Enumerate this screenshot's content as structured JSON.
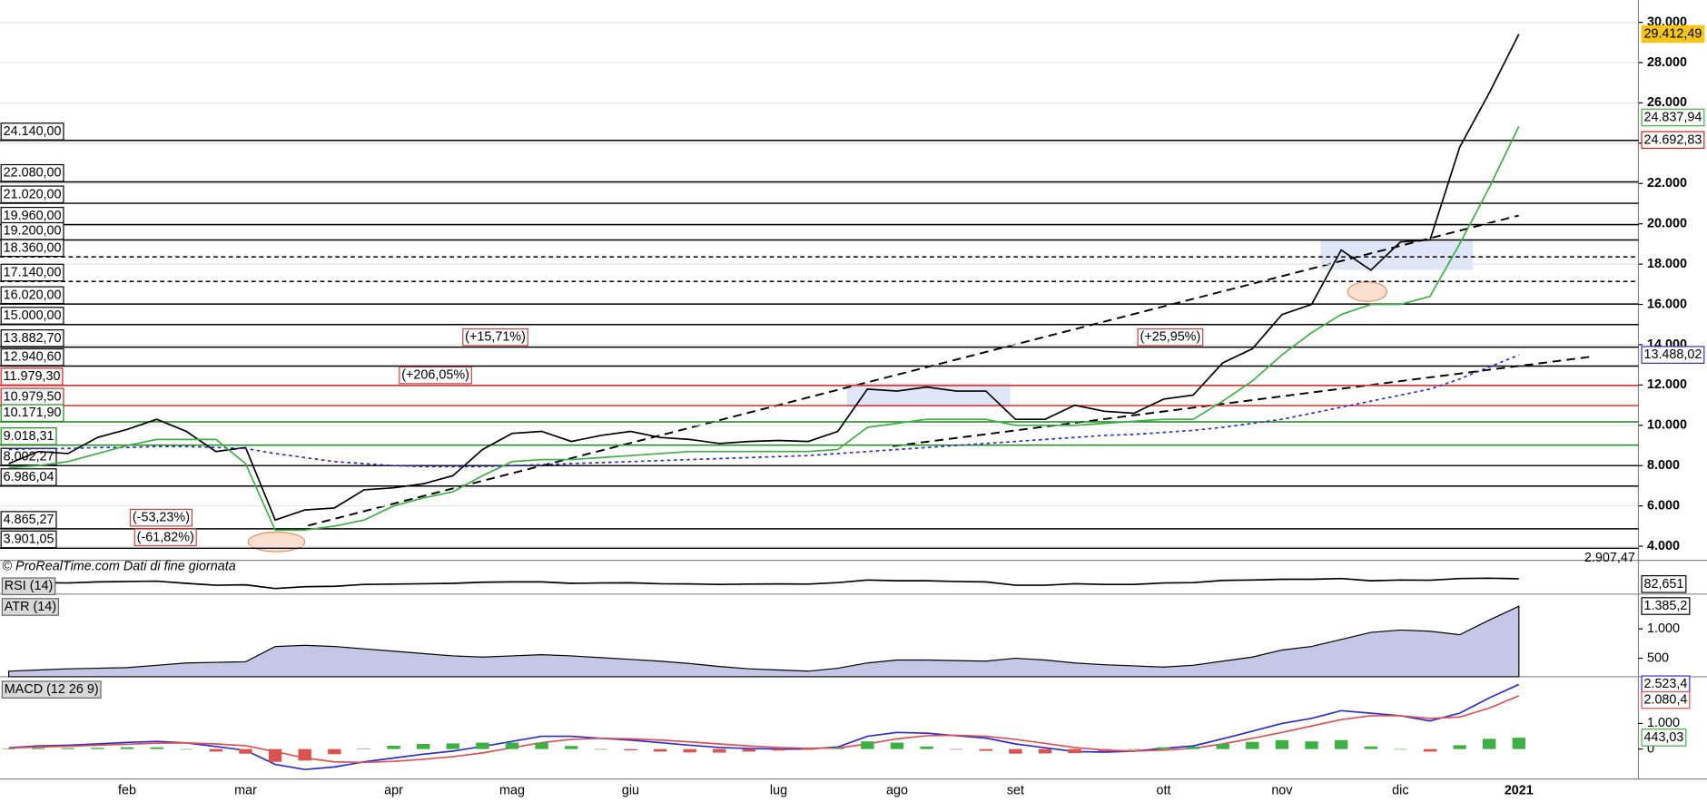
{
  "chart_data": [
    {
      "type": "line",
      "categories": [
        null,
        null,
        null,
        null,
        "feb",
        null,
        null,
        null,
        "mar",
        null,
        null,
        null,
        null,
        "apr",
        null,
        null,
        null,
        "mag",
        null,
        null,
        null,
        "giu",
        null,
        null,
        null,
        null,
        "lug",
        null,
        null,
        null,
        "ago",
        null,
        null,
        null,
        "set",
        null,
        null,
        null,
        null,
        "ott",
        null,
        null,
        null,
        "nov",
        null,
        null,
        null,
        "dic",
        null,
        null,
        null,
        "2021"
      ],
      "series": [
        {
          "color": "#000000",
          "values": [
            8100,
            8700,
            8600,
            9400,
            9800,
            10300,
            9700,
            8700,
            8900,
            5300,
            5800,
            5900,
            6800,
            6900,
            7100,
            7500,
            8800,
            9600,
            9700,
            9200,
            9500,
            9700,
            9400,
            9300,
            9100,
            9200,
            9250,
            9200,
            9700,
            11800,
            11700,
            11900,
            11700,
            11700,
            10300,
            10300,
            11000,
            10700,
            10600,
            11300,
            11500,
            13100,
            13800,
            15500,
            16000,
            18700,
            17700,
            19100,
            19200,
            23800,
            26500,
            29412.49
          ]
        },
        {
          "color": "#2b2bd6",
          "dash": "3,3",
          "values": [
            8800,
            8850,
            8850,
            8900,
            8900,
            8950,
            8950,
            8900,
            8850,
            8600,
            8400,
            8200,
            8100,
            8000,
            7950,
            7950,
            7950,
            8000,
            8050,
            8100,
            8150,
            8200,
            8250,
            8300,
            8350,
            8400,
            8450,
            8500,
            8600,
            8700,
            8800,
            8900,
            9000,
            9100,
            9200,
            9300,
            9400,
            9500,
            9550,
            9650,
            9750,
            9900,
            10100,
            10300,
            10600,
            10900,
            11200,
            11500,
            11800,
            12300,
            12900,
            13488.02
          ]
        },
        {
          "color": "#3cb043",
          "values": [
            7900,
            8000,
            8200,
            8600,
            9000,
            9300,
            9300,
            9300,
            8100,
            4800,
            4800,
            5000,
            5300,
            6000,
            6400,
            6700,
            7500,
            8200,
            8300,
            8300,
            8400,
            8500,
            8600,
            8700,
            8700,
            8700,
            8700,
            8700,
            8800,
            9900,
            10100,
            10300,
            10300,
            10300,
            10000,
            10000,
            10000,
            10100,
            10200,
            10300,
            10300,
            11200,
            12200,
            13500,
            14600,
            15500,
            16000,
            16000,
            16400,
            19000,
            21800,
            24837.94
          ]
        }
      ],
      "ylim": [
        3300,
        31100
      ],
      "yticks": [
        {
          "value": 4000,
          "label": "4.000"
        },
        {
          "value": 6000,
          "label": "6.000"
        },
        {
          "value": 8000,
          "label": "8.000"
        },
        {
          "value": 10000,
          "label": "10.000"
        },
        {
          "value": 12000,
          "label": "12.000"
        },
        {
          "value": 14000,
          "label": "14.000"
        },
        {
          "value": 16000,
          "label": "16.000"
        },
        {
          "value": 18000,
          "label": "18.000"
        },
        {
          "value": 20000,
          "label": "20.000"
        },
        {
          "value": 22000,
          "label": "22.000"
        },
        {
          "value": 24000,
          "label": "24.000"
        },
        {
          "value": 26000,
          "label": "26.000"
        },
        {
          "value": 28000,
          "label": "28.000"
        },
        {
          "value": 30000,
          "label": "30.000"
        }
      ],
      "grid": true,
      "levels": [
        {
          "value": 24140,
          "label": "24.140,00",
          "color": "#000000"
        },
        {
          "value": 22080,
          "label": "22.080,00",
          "color": "#000000"
        },
        {
          "value": 21020,
          "label": "21.020,00",
          "color": "#000000"
        },
        {
          "value": 19960,
          "label": "19.960,00",
          "color": "#000000"
        },
        {
          "value": 19200,
          "label": "19.200,00",
          "color": "#000000"
        },
        {
          "value": 18360,
          "label": "18.360,00",
          "color": "#000000",
          "dash": "4,3"
        },
        {
          "value": 17140,
          "label": "17.140,00",
          "color": "#000000",
          "dash": "4,3"
        },
        {
          "value": 16020,
          "label": "16.020,00",
          "color": "#000000"
        },
        {
          "value": 15000,
          "label": "15.000,00",
          "color": "#000000"
        },
        {
          "value": 13882.7,
          "label": "13.882,70",
          "color": "#000000"
        },
        {
          "value": 12940.6,
          "label": "12.940,60",
          "color": "#000000"
        },
        {
          "value": 11979.3,
          "label": "11.979,30",
          "color": "#d42020"
        },
        {
          "value": 10979.5,
          "label": "10.979,50",
          "color": "#d42020"
        },
        {
          "value": 10171.9,
          "label": "10.171,90",
          "color": "#1a8a1a"
        },
        {
          "value": 9018.31,
          "label": "9.018,31",
          "color": "#1a8a1a"
        },
        {
          "value": 8002.27,
          "label": "8.002,27",
          "color": "#000000"
        },
        {
          "value": 6986.04,
          "label": "6.986,04",
          "color": "#000000"
        },
        {
          "value": 4865.27,
          "label": "4.865,27",
          "color": "#000000"
        },
        {
          "value": 3901.05,
          "label": "3.901,05",
          "color": "#000000"
        }
      ],
      "price_labels": [
        {
          "value": 29412.49,
          "label": "29.412,49",
          "color": "#f5c518"
        },
        {
          "value": 24837.94,
          "label": "24.837,94",
          "color": "#3cb043"
        },
        {
          "value": 24692.83,
          "label": "24.692,83",
          "color": "#d42020"
        },
        {
          "value": 13488.02,
          "label": "13.488,02",
          "color": "#2b2bd6"
        }
      ],
      "annotations": [
        "(+15,71%)",
        "(+206,05%)",
        "(+25,95%)",
        "(-53,23%)",
        "(-61,82%)"
      ],
      "source": "© ProRealTime.com  Dati di fine giornata",
      "bottom_label": "2.907,47"
    },
    {
      "type": "line",
      "title": "RSI (14)",
      "ylim": [
        0,
        100
      ],
      "value_label": "82,651",
      "series": [
        {
          "color": "#000000",
          "values": [
            55,
            62,
            60,
            66,
            68,
            70,
            58,
            48,
            50,
            30,
            40,
            42,
            52,
            54,
            56,
            58,
            64,
            66,
            66,
            58,
            60,
            61,
            56,
            55,
            52,
            54,
            55,
            54,
            62,
            76,
            72,
            72,
            68,
            66,
            48,
            48,
            56,
            52,
            52,
            60,
            62,
            74,
            76,
            80,
            80,
            84,
            72,
            76,
            75,
            84,
            86,
            82.651
          ]
        }
      ]
    },
    {
      "type": "area",
      "title": "ATR (14)",
      "ylim": [
        185,
        1555
      ],
      "yticks": [
        500,
        {
          "value": 1000,
          "label": "1.000"
        }
      ],
      "value_label": "1.385,2",
      "series": [
        {
          "color": "#8080c8",
          "values": [
            280,
            300,
            320,
            330,
            340,
            380,
            420,
            430,
            440,
            700,
            720,
            700,
            660,
            620,
            580,
            540,
            520,
            540,
            560,
            540,
            510,
            480,
            450,
            410,
            360,
            320,
            300,
            280,
            330,
            420,
            470,
            470,
            460,
            450,
            500,
            470,
            420,
            390,
            370,
            350,
            380,
            450,
            520,
            640,
            700,
            820,
            940,
            980,
            960,
            900,
            1150,
            1385.2
          ]
        }
      ]
    },
    {
      "type": "line",
      "title": "MACD (12 26 9)",
      "ylim": [
        -1170,
        2740
      ],
      "yticks": [
        0,
        {
          "value": 1000,
          "label": "1.000"
        }
      ],
      "value_labels": [
        "2.523,4",
        "2.080,4",
        "443,03"
      ],
      "series": [
        {
          "color": "#2b2bd6",
          "values": [
            50,
            120,
            150,
            200,
            260,
            300,
            240,
            100,
            -50,
            -600,
            -800,
            -700,
            -500,
            -350,
            -200,
            -80,
            100,
            300,
            500,
            500,
            420,
            350,
            250,
            150,
            60,
            20,
            0,
            0,
            80,
            500,
            650,
            620,
            520,
            430,
            200,
            50,
            -100,
            -120,
            -80,
            30,
            120,
            400,
            700,
            1000,
            1200,
            1500,
            1400,
            1300,
            1100,
            1400,
            2000,
            2523.4
          ]
        },
        {
          "color": "#e05050",
          "values": [
            40,
            80,
            110,
            150,
            190,
            230,
            240,
            200,
            130,
            -100,
            -350,
            -500,
            -520,
            -480,
            -400,
            -300,
            -150,
            50,
            250,
            380,
            420,
            400,
            350,
            280,
            200,
            120,
            60,
            30,
            40,
            200,
            400,
            520,
            540,
            500,
            380,
            220,
            60,
            -40,
            -80,
            -40,
            30,
            200,
            420,
            650,
            900,
            1150,
            1300,
            1300,
            1200,
            1250,
            1600,
            2080.4
          ]
        },
        {
          "type": "bar",
          "color": "#3cb043",
          "negative_color": "#d9534f",
          "values": [
            10,
            40,
            40,
            50,
            70,
            70,
            0,
            -100,
            -180,
            -500,
            -450,
            -200,
            20,
            130,
            200,
            220,
            250,
            250,
            250,
            120,
            0,
            -50,
            -100,
            -130,
            -140,
            -100,
            -60,
            -30,
            40,
            300,
            250,
            100,
            -20,
            -70,
            -180,
            -170,
            -160,
            -80,
            0,
            70,
            90,
            200,
            280,
            350,
            300,
            350,
            100,
            0,
            -100,
            150,
            400,
            443.03
          ]
        }
      ]
    }
  ]
}
